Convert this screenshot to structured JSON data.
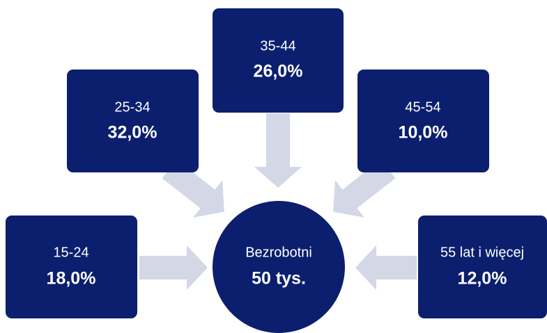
{
  "center": {
    "label": "Bezrobotni",
    "value": "50 tys."
  },
  "nodes": [
    {
      "label": "15-24",
      "value": "18,0%"
    },
    {
      "label": "25-34",
      "value": "32,0%"
    },
    {
      "label": "35-44",
      "value": "26,0%"
    },
    {
      "label": "45-54",
      "value": "10,0%"
    },
    {
      "label": "55 lat i więcej",
      "value": "12,0%"
    }
  ]
}
